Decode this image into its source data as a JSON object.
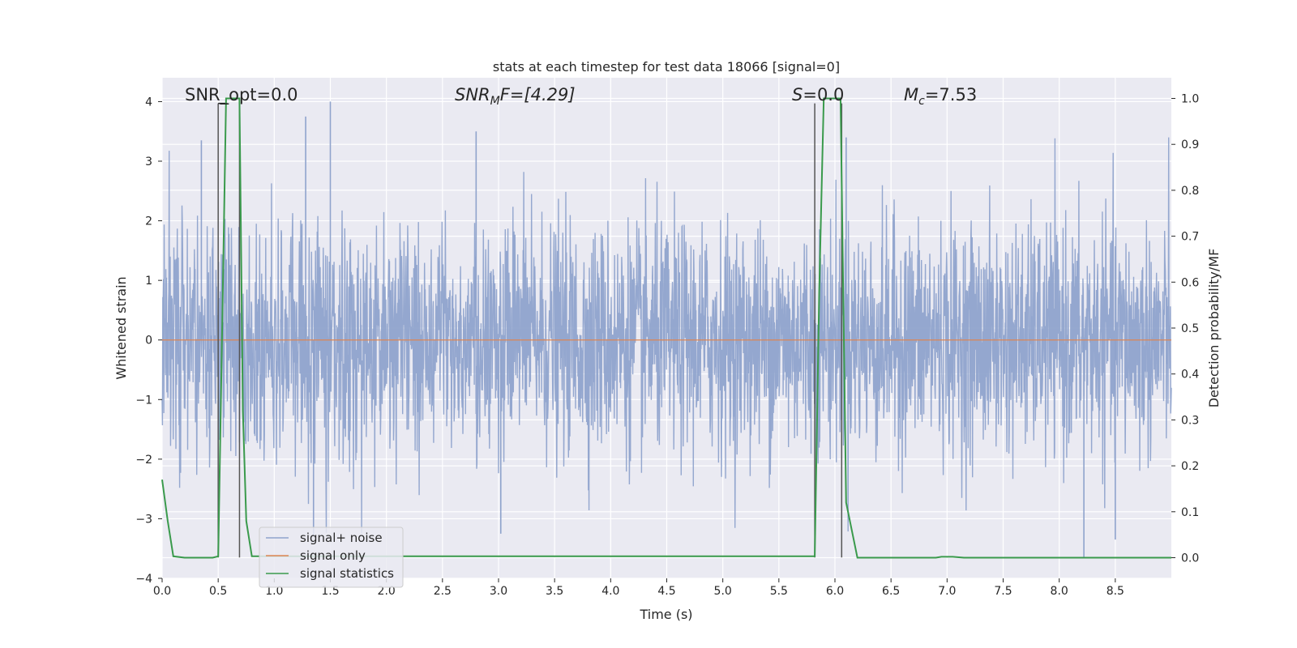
{
  "chart_data": {
    "type": "line",
    "title": "stats at each timestep for test data 18066 [signal=0]",
    "xlabel": "Time (s)",
    "ylabel": "Whitened strain",
    "ylabel_right": "Detection probability/MF",
    "xlim": [
      0.0,
      9.0
    ],
    "ylim": [
      -4.0,
      4.4
    ],
    "ylim_right": [
      -0.045,
      1.045
    ],
    "x_ticks": [
      "0.0",
      "0.5",
      "1.0",
      "1.5",
      "2.0",
      "2.5",
      "3.0",
      "3.5",
      "4.0",
      "4.5",
      "5.0",
      "5.5",
      "6.0",
      "6.5",
      "7.0",
      "7.5",
      "8.0",
      "8.5"
    ],
    "y_ticks": [
      "4",
      "3",
      "2",
      "1",
      "0",
      "−1",
      "−2",
      "−3",
      "−4"
    ],
    "y_right_ticks": [
      "1.0",
      "0.9",
      "0.8",
      "0.7",
      "0.6",
      "0.5",
      "0.4",
      "0.3",
      "0.2",
      "0.1",
      "0.0"
    ],
    "grid": true,
    "legend_position": "lower-left",
    "annotations": {
      "snr_opt": "SNR_opt=0.0",
      "snr_mf_name": "SNR",
      "snr_mf_sub": "M",
      "snr_mf_rest": "F=[4.29]",
      "s_name": "S",
      "s_rest": "=0.0",
      "mc_name": "M",
      "mc_sub": "c",
      "mc_rest": "=7.53"
    },
    "series": [
      {
        "name": "signal+ noise",
        "color": "#8fa3cc",
        "description": "dense whitened-strain noise, amplitude roughly within ±2 with spikes to about ±4",
        "envelope": {
          "upper_typical": 2.0,
          "lower_typical": -2.0,
          "max": 4.0,
          "min": -3.7
        },
        "spikes": [
          {
            "x": 0.35,
            "y": 3.35
          },
          {
            "x": 1.28,
            "y": 3.75
          },
          {
            "x": 1.5,
            "y": 4.0
          },
          {
            "x": 2.8,
            "y": 3.5
          },
          {
            "x": 6.1,
            "y": 3.4
          },
          {
            "x": 8.22,
            "y": -3.65
          },
          {
            "x": 1.35,
            "y": -3.3
          },
          {
            "x": 3.02,
            "y": -3.25
          },
          {
            "x": 8.5,
            "y": -3.35
          }
        ]
      },
      {
        "name": "signal only",
        "color": "#dd8452",
        "x": [
          0.0,
          9.0
        ],
        "y": [
          0.0,
          0.0
        ]
      },
      {
        "name": "signal statistics",
        "color": "#3a9a4c",
        "axis": "right",
        "x": [
          0.0,
          0.05,
          0.1,
          0.2,
          0.45,
          0.5,
          0.53,
          0.57,
          0.69,
          0.72,
          0.75,
          0.8,
          5.82,
          5.86,
          5.9,
          6.05,
          6.1,
          6.2,
          6.9,
          6.95,
          7.05,
          7.15,
          9.0
        ],
        "y": [
          0.17,
          0.08,
          0.003,
          0.0,
          0.0,
          0.003,
          0.42,
          1.0,
          1.0,
          0.32,
          0.08,
          0.003,
          0.003,
          0.58,
          1.0,
          1.0,
          0.12,
          0.0,
          0.0,
          0.002,
          0.002,
          0.0,
          0.0
        ]
      }
    ],
    "vertical_markers": [
      {
        "x": 0.5,
        "y_top": 3.97,
        "y_bottom": -3.65
      },
      {
        "x": 0.69,
        "y_top": 3.97,
        "y_bottom": -3.65
      },
      {
        "x": 5.82,
        "y_top": 3.97,
        "y_bottom": -3.65
      },
      {
        "x": 6.06,
        "y_top": 3.97,
        "y_bottom": -3.65
      }
    ],
    "colors": {
      "plot_background": "#eaeaf2",
      "grid": "#ffffff",
      "marker": "#555555"
    }
  }
}
